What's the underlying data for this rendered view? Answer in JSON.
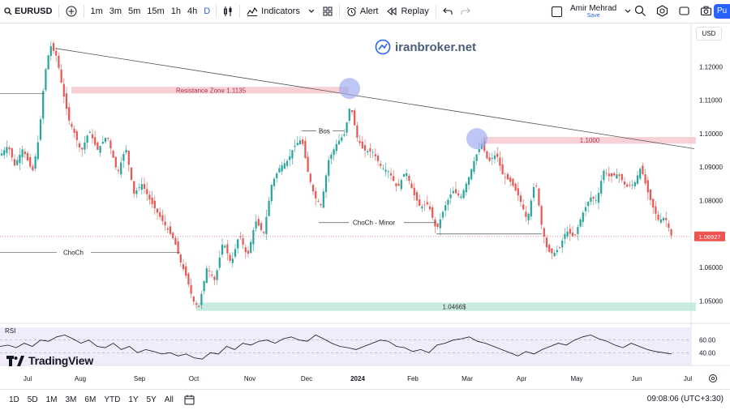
{
  "toolbar": {
    "symbol": "EURUSD",
    "timeframes": [
      "1m",
      "3m",
      "5m",
      "15m",
      "1h",
      "4h",
      "D"
    ],
    "active_timeframe": "D",
    "indicators_label": "Indicators",
    "alert_label": "Alert",
    "replay_label": "Replay",
    "user_name": "Amir Mehrad",
    "save_label": "Save",
    "publish_label": "Pu"
  },
  "watermark": "iranbroker.net",
  "currency": "USD",
  "chart_data": {
    "type": "candlestick",
    "symbol": "EURUSD",
    "timeframe": "D",
    "ylim": [
      1.0445,
      1.131
    ],
    "y_ticks": [
      1.12,
      1.11,
      1.1,
      1.09,
      1.08,
      1.07,
      1.06,
      1.05
    ],
    "y_tick_labels": [
      "1.12000",
      "1.11000",
      "1.10000",
      "1.09000",
      "1.08000",
      "1.07000",
      "1.06000",
      "1.05000"
    ],
    "last_price": 1.06927,
    "last_price_label": "1.06927",
    "x_labels": [
      "Jul",
      "Aug",
      "Sep",
      "Oct",
      "Nov",
      "Dec",
      "2024",
      "Feb",
      "Mar",
      "Apr",
      "May",
      "Jun",
      "Jul"
    ],
    "price_path": [
      [
        0,
        1.0935
      ],
      [
        10,
        1.0965
      ],
      [
        18,
        1.0905
      ],
      [
        28,
        1.0955
      ],
      [
        40,
        1.0885
      ],
      [
        48,
        1.099
      ],
      [
        55,
        1.1175
      ],
      [
        62,
        1.1265
      ],
      [
        70,
        1.123
      ],
      [
        78,
        1.112
      ],
      [
        85,
        1.104
      ],
      [
        92,
        1.1
      ],
      [
        100,
        1.0945
      ],
      [
        110,
        1.101
      ],
      [
        120,
        1.095
      ],
      [
        132,
        1.0995
      ],
      [
        145,
        1.088
      ],
      [
        155,
        1.096
      ],
      [
        165,
        1.082
      ],
      [
        175,
        1.085
      ],
      [
        185,
        1.08
      ],
      [
        195,
        1.076
      ],
      [
        205,
        1.072
      ],
      [
        215,
        1.068
      ],
      [
        222,
        1.062
      ],
      [
        230,
        1.057
      ],
      [
        238,
        1.05
      ],
      [
        245,
        1.048
      ],
      [
        255,
        1.06
      ],
      [
        265,
        1.056
      ],
      [
        275,
        1.068
      ],
      [
        285,
        1.061
      ],
      [
        295,
        1.07
      ],
      [
        305,
        1.063
      ],
      [
        315,
        1.074
      ],
      [
        325,
        1.07
      ],
      [
        335,
        1.085
      ],
      [
        345,
        1.09
      ],
      [
        355,
        1.092
      ],
      [
        362,
        1.096
      ],
      [
        372,
        1.0985
      ],
      [
        380,
        1.088
      ],
      [
        388,
        1.081
      ],
      [
        396,
        1.0785
      ],
      [
        405,
        1.092
      ],
      [
        415,
        1.097
      ],
      [
        425,
        1.1
      ],
      [
        432,
        1.109
      ],
      [
        440,
        1.099
      ],
      [
        448,
        1.095
      ],
      [
        460,
        1.0945
      ],
      [
        470,
        1.09
      ],
      [
        480,
        1.0885
      ],
      [
        490,
        1.0835
      ],
      [
        500,
        1.089
      ],
      [
        510,
        1.082
      ],
      [
        518,
        1.078
      ],
      [
        528,
        1.079
      ],
      [
        538,
        1.071
      ],
      [
        548,
        1.078
      ],
      [
        558,
        1.083
      ],
      [
        568,
        1.081
      ],
      [
        578,
        1.087
      ],
      [
        586,
        1.093
      ],
      [
        594,
        1.097
      ],
      [
        602,
        1.0915
      ],
      [
        612,
        1.094
      ],
      [
        620,
        1.0875
      ],
      [
        630,
        1.0855
      ],
      [
        640,
        1.081
      ],
      [
        650,
        1.074
      ],
      [
        660,
        1.0865
      ],
      [
        668,
        1.072
      ],
      [
        675,
        1.065
      ],
      [
        682,
        1.064
      ],
      [
        690,
        1.066
      ],
      [
        698,
        1.071
      ],
      [
        708,
        1.069
      ],
      [
        718,
        1.076
      ],
      [
        728,
        1.081
      ],
      [
        736,
        1.08
      ],
      [
        744,
        1.089
      ],
      [
        752,
        1.087
      ],
      [
        762,
        1.088
      ],
      [
        772,
        1.084
      ],
      [
        782,
        1.085
      ],
      [
        790,
        1.09
      ],
      [
        798,
        1.083
      ],
      [
        805,
        1.078
      ],
      [
        812,
        1.074
      ],
      [
        820,
        1.075
      ],
      [
        828,
        1.0693
      ]
    ],
    "annotations": [
      {
        "type": "zone",
        "label": "Resistance Zone 1.1135",
        "y_top": 1.114,
        "y_bottom": 1.112,
        "color": "#f7c9cf",
        "text_color": "#b0344a"
      },
      {
        "type": "zone",
        "label": "1.1000",
        "y_top": 1.099,
        "y_bottom": 1.097,
        "color": "#f7c9cf",
        "text_color": "#b0344a"
      },
      {
        "type": "zone",
        "label": "1.0466$",
        "y_top": 1.0495,
        "y_bottom": 1.047,
        "color": "#bfe6dc",
        "text_color": "#333333"
      },
      {
        "type": "hline",
        "label": "ChoCh",
        "y": 1.0645
      },
      {
        "type": "hline",
        "label": "ChoCh - Minor",
        "y": 1.0734
      },
      {
        "type": "hline",
        "label": "Bos",
        "y": 1.1008
      },
      {
        "type": "trendline",
        "y_start": 1.1255,
        "y_end": 1.0955
      }
    ]
  },
  "rsi": {
    "label": "RSI",
    "levels": [
      "60.00",
      "40.00"
    ],
    "values": [
      50,
      52,
      48,
      55,
      50,
      60,
      58,
      65,
      68,
      62,
      55,
      60,
      50,
      48,
      55,
      45,
      50,
      40,
      45,
      42,
      38,
      40,
      35,
      38,
      32,
      30,
      40,
      38,
      50,
      45,
      55,
      52,
      58,
      60,
      55,
      62,
      65,
      60,
      58,
      68,
      62,
      55,
      50,
      48,
      45,
      50,
      55,
      60,
      58,
      50,
      48,
      42,
      45,
      40,
      52,
      55,
      60,
      62,
      65,
      58,
      55,
      50,
      45,
      40,
      35,
      42,
      38,
      45,
      50,
      55,
      52,
      60,
      65,
      68,
      62,
      58,
      52,
      48,
      55,
      50,
      45,
      42,
      40,
      38
    ]
  },
  "logo_text": "TradingView",
  "bottombar": {
    "ranges": [
      "1D",
      "5D",
      "1M",
      "3M",
      "6M",
      "YTD",
      "1Y",
      "5Y",
      "All"
    ],
    "clock": "09:08:06 (UTC+3:30)"
  },
  "colors": {
    "up": "#26a69a",
    "down": "#ef5350",
    "circle": "#9aa8f0",
    "rsi_bg": "#f1ecfb",
    "accent": "#2962ff"
  }
}
